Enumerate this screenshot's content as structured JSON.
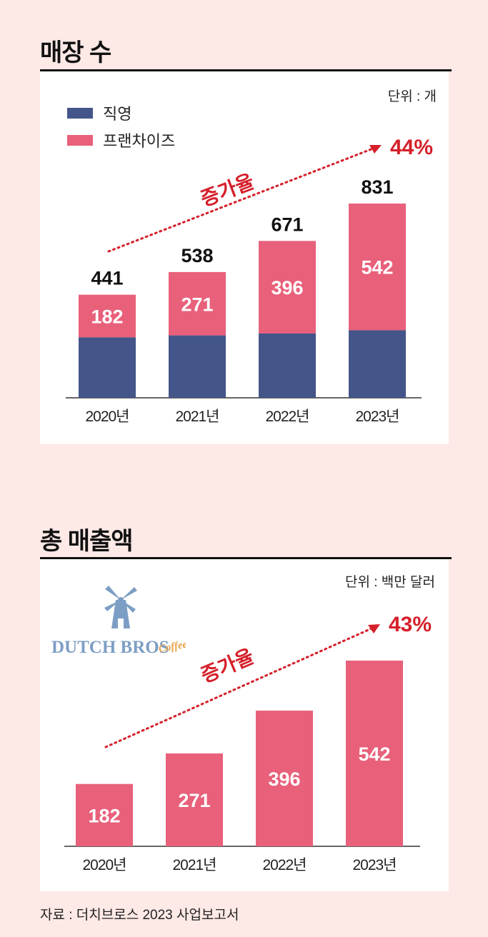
{
  "colors": {
    "direct": "#44558a",
    "franchise": "#e8607a",
    "growth": "#d51f2a",
    "background": "#fde9e6",
    "logo": "#7d9ec4",
    "logo_script": "#e6a34a"
  },
  "section1": {
    "title": "매장 수",
    "unit": "단위 : 개",
    "legend": [
      {
        "label": "직영",
        "color": "#44558a"
      },
      {
        "label": "프랜차이즈",
        "color": "#e8607a"
      }
    ],
    "growth_label": "증가율",
    "growth_value": "44%"
  },
  "section2": {
    "title": "총 매출액",
    "unit": "단위 : 백만 달러",
    "growth_label": "증가율",
    "growth_value": "43%",
    "logo_text": "DUTCH BROS",
    "logo_script": "Coffee"
  },
  "chart_data": [
    {
      "type": "bar",
      "title": "매장 수",
      "stacked": true,
      "categories": [
        "2020년",
        "2021년",
        "2022년",
        "2023년"
      ],
      "series": [
        {
          "name": "직영",
          "values": [
            259,
            267,
            275,
            289
          ],
          "show_labels": false
        },
        {
          "name": "프랜차이즈",
          "values": [
            182,
            271,
            396,
            542
          ],
          "show_labels": true
        }
      ],
      "totals": [
        441,
        538,
        671,
        831
      ],
      "ylim": [
        0,
        900
      ]
    },
    {
      "type": "bar",
      "title": "총 매출액",
      "categories": [
        "2020년",
        "2021년",
        "2022년",
        "2023년"
      ],
      "values": [
        182,
        271,
        396,
        542
      ],
      "ylim": [
        0,
        700
      ]
    }
  ],
  "source": "자료 : 더치브로스 2023 사업보고서"
}
